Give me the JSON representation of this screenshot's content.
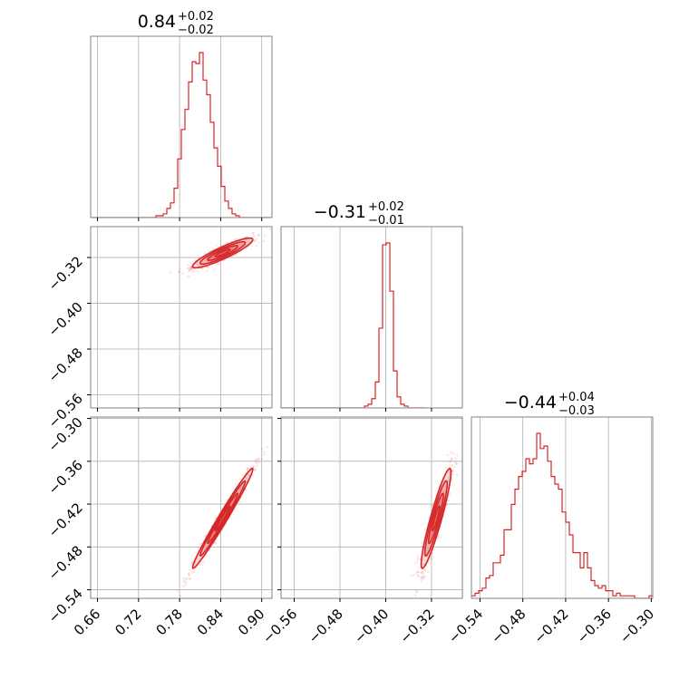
{
  "colors": {
    "series": "#d62728",
    "frame": "#808080",
    "grid": "#b0b0b0"
  },
  "chart_data": {
    "type": "corner",
    "grid": true,
    "parameters": [
      {
        "index": 0,
        "range": [
          0.65,
          0.915
        ],
        "ticks": [
          0.66,
          0.72,
          0.78,
          0.84,
          0.9
        ],
        "tick_labels": [
          "0.66",
          "0.72",
          "0.78",
          "0.84",
          "0.90"
        ],
        "title": {
          "main": "0.84",
          "sup": "+0.02",
          "sub": "−0.02"
        }
      },
      {
        "index": 1,
        "range": [
          -0.583,
          -0.266
        ],
        "ticks": [
          -0.56,
          -0.48,
          -0.4,
          -0.32
        ],
        "tick_labels": [
          "−0.56",
          "−0.48",
          "−0.40",
          "−0.32"
        ],
        "title": {
          "main": "−0.31",
          "sup": "+0.02",
          "sub": "−0.01"
        }
      },
      {
        "index": 2,
        "range": [
          -0.552,
          -0.298
        ],
        "ticks": [
          -0.54,
          -0.48,
          -0.42,
          -0.36,
          -0.3
        ],
        "tick_labels": [
          "−0.54",
          "−0.48",
          "−0.42",
          "−0.36",
          "−0.30"
        ],
        "title": {
          "main": "−0.44",
          "sup": "+0.04",
          "sub": "−0.03"
        }
      }
    ],
    "histograms": [
      {
        "param": 0,
        "bin_start": 0.65,
        "bin_width": 0.0053,
        "counts": [
          0,
          0,
          0,
          0,
          0,
          0,
          0,
          0,
          0,
          0,
          0,
          0,
          0,
          0,
          0,
          0,
          0,
          0,
          1,
          1,
          2,
          5,
          8,
          16,
          32,
          48,
          59,
          74,
          85,
          84,
          90,
          75,
          67,
          52,
          38,
          28,
          17,
          9,
          5,
          2,
          1,
          0,
          0,
          0,
          0,
          0,
          0,
          0,
          0,
          0
        ]
      },
      {
        "param": 1,
        "bin_start": -0.583,
        "bin_width": 0.00634,
        "counts": [
          0,
          0,
          0,
          0,
          0,
          0,
          0,
          0,
          0,
          0,
          0,
          0,
          0,
          0,
          0,
          0,
          0,
          0,
          0,
          0,
          0,
          0,
          0,
          1,
          2,
          5,
          14,
          43,
          88,
          89,
          63,
          20,
          6,
          2,
          1,
          0,
          0,
          0,
          0,
          0
        ]
      },
      {
        "param": 2,
        "bin_start": -0.552,
        "bin_width": 0.00508,
        "counts": [
          1,
          2,
          3,
          4,
          8,
          9,
          14,
          14,
          17,
          27,
          27,
          37,
          43,
          48,
          50,
          55,
          53,
          55,
          65,
          59,
          60,
          54,
          48,
          45,
          43,
          34,
          30,
          25,
          18,
          18,
          12,
          18,
          12,
          7,
          5,
          4,
          5,
          3,
          3,
          1,
          2,
          1,
          1,
          1,
          1,
          0,
          0,
          0,
          0,
          1
        ]
      }
    ],
    "joint": [
      {
        "row": 1,
        "col": 0,
        "center": [
          0.843,
          -0.312
        ],
        "sx": 0.022,
        "sy": 0.013,
        "rho": 0.9,
        "contour_levels": [
          0.5,
          1.0,
          1.5,
          2.0
        ]
      },
      {
        "row": 2,
        "col": 0,
        "center": [
          0.843,
          -0.44
        ],
        "sx": 0.022,
        "sy": 0.035,
        "rho": 0.985,
        "contour_levels": [
          0.5,
          1.0,
          1.5,
          2.0
        ]
      },
      {
        "row": 2,
        "col": 1,
        "center": [
          -0.312,
          -0.44
        ],
        "sx": 0.013,
        "sy": 0.035,
        "rho": 0.92,
        "contour_levels": [
          0.5,
          1.0,
          1.5,
          2.0
        ]
      }
    ]
  }
}
